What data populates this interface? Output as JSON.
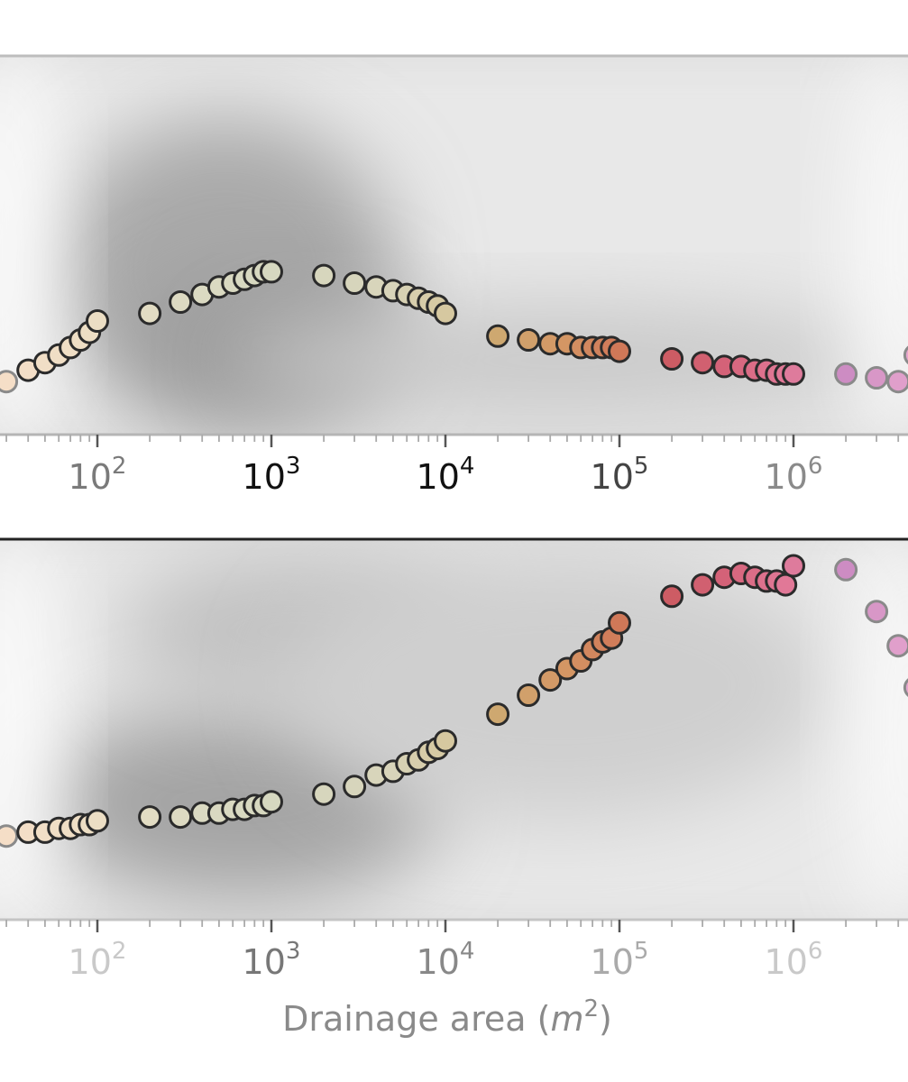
{
  "chart_data": [
    {
      "type": "scatter",
      "panel": "top",
      "x_scale": "log",
      "xlim": [
        20,
        5000000
      ],
      "ylim": [
        0,
        1
      ],
      "xticks": [
        {
          "value": 100,
          "base": "10",
          "exp": "2"
        },
        {
          "value": 1000,
          "base": "10",
          "exp": "3"
        },
        {
          "value": 10000,
          "base": "10",
          "exp": "4"
        },
        {
          "value": 100000,
          "base": "10",
          "exp": "5"
        },
        {
          "value": 1000000,
          "base": "10",
          "exp": "6"
        }
      ],
      "xlabel": "",
      "ylabel": "",
      "background": "gray density cloud",
      "points": {
        "x": [
          30,
          40,
          50,
          60,
          70,
          80,
          90,
          100,
          200,
          300,
          400,
          500,
          600,
          700,
          800,
          900,
          1000,
          2000,
          3000,
          4000,
          5000,
          6000,
          7000,
          8000,
          9000,
          10000,
          20000,
          30000,
          40000,
          50000,
          60000,
          70000,
          80000,
          90000,
          100000,
          200000,
          300000,
          400000,
          500000,
          600000,
          700000,
          800000,
          900000,
          1000000,
          2000000,
          3000000,
          4000000,
          5000000
        ],
        "y": [
          0.14,
          0.17,
          0.19,
          0.21,
          0.23,
          0.25,
          0.27,
          0.3,
          0.32,
          0.35,
          0.37,
          0.39,
          0.4,
          0.41,
          0.42,
          0.43,
          0.43,
          0.42,
          0.4,
          0.39,
          0.38,
          0.37,
          0.36,
          0.35,
          0.34,
          0.32,
          0.26,
          0.25,
          0.24,
          0.24,
          0.23,
          0.23,
          0.23,
          0.23,
          0.22,
          0.2,
          0.19,
          0.18,
          0.18,
          0.17,
          0.17,
          0.16,
          0.16,
          0.16,
          0.16,
          0.15,
          0.14,
          0.21
        ]
      }
    },
    {
      "type": "scatter",
      "panel": "bottom",
      "x_scale": "log",
      "xlim": [
        20,
        5000000
      ],
      "ylim": [
        0,
        1
      ],
      "xticks": [
        {
          "value": 100,
          "base": "10",
          "exp": "2"
        },
        {
          "value": 1000,
          "base": "10",
          "exp": "3"
        },
        {
          "value": 10000,
          "base": "10",
          "exp": "4"
        },
        {
          "value": 100000,
          "base": "10",
          "exp": "5"
        },
        {
          "value": 1000000,
          "base": "10",
          "exp": "6"
        }
      ],
      "xlabel": "Drainage area (m²)",
      "xlabel_parts": {
        "text": "Drainage area (",
        "var": "m",
        "exp": "2",
        "close": ")"
      },
      "ylabel": "",
      "background": "gray density cloud",
      "points": {
        "x": [
          30,
          40,
          50,
          60,
          70,
          80,
          90,
          100,
          200,
          300,
          400,
          500,
          600,
          700,
          800,
          900,
          1000,
          2000,
          3000,
          4000,
          5000,
          6000,
          7000,
          8000,
          9000,
          10000,
          20000,
          30000,
          40000,
          50000,
          60000,
          70000,
          80000,
          90000,
          100000,
          200000,
          300000,
          400000,
          500000,
          600000,
          700000,
          800000,
          900000,
          1000000,
          2000000,
          3000000,
          4000000,
          5000000
        ],
        "y": [
          0.22,
          0.23,
          0.23,
          0.24,
          0.24,
          0.25,
          0.25,
          0.26,
          0.27,
          0.27,
          0.28,
          0.28,
          0.29,
          0.29,
          0.3,
          0.3,
          0.31,
          0.33,
          0.35,
          0.38,
          0.39,
          0.41,
          0.42,
          0.44,
          0.45,
          0.47,
          0.54,
          0.59,
          0.63,
          0.66,
          0.68,
          0.71,
          0.73,
          0.74,
          0.78,
          0.85,
          0.88,
          0.9,
          0.91,
          0.9,
          0.89,
          0.89,
          0.88,
          0.93,
          0.92,
          0.81,
          0.72,
          0.61
        ]
      }
    }
  ]
}
